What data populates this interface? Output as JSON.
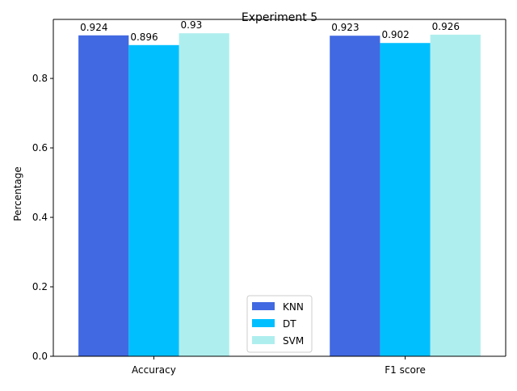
{
  "chart_data": {
    "type": "bar",
    "title": "Experiment 5",
    "xlabel": "",
    "ylabel": "Percentage",
    "categories": [
      "Accuracy",
      "F1 score"
    ],
    "series": [
      {
        "name": "KNN",
        "values": [
          0.924,
          0.923
        ],
        "labels": [
          "0.924",
          "0.923"
        ],
        "color": "#4169E1"
      },
      {
        "name": "DT",
        "values": [
          0.896,
          0.902
        ],
        "labels": [
          "0.896",
          "0.902"
        ],
        "color": "#00BFFF"
      },
      {
        "name": "SVM",
        "values": [
          0.93,
          0.926
        ],
        "labels": [
          "0.93",
          "0.926"
        ],
        "color": "#AFEEEE"
      }
    ],
    "ylim": [
      0,
      0.97
    ],
    "yticks": [
      0.0,
      0.2,
      0.4,
      0.6,
      0.8
    ],
    "ytick_labels": [
      "0.0",
      "0.2",
      "0.4",
      "0.6",
      "0.8"
    ],
    "grid": false,
    "legend": "lower center"
  }
}
